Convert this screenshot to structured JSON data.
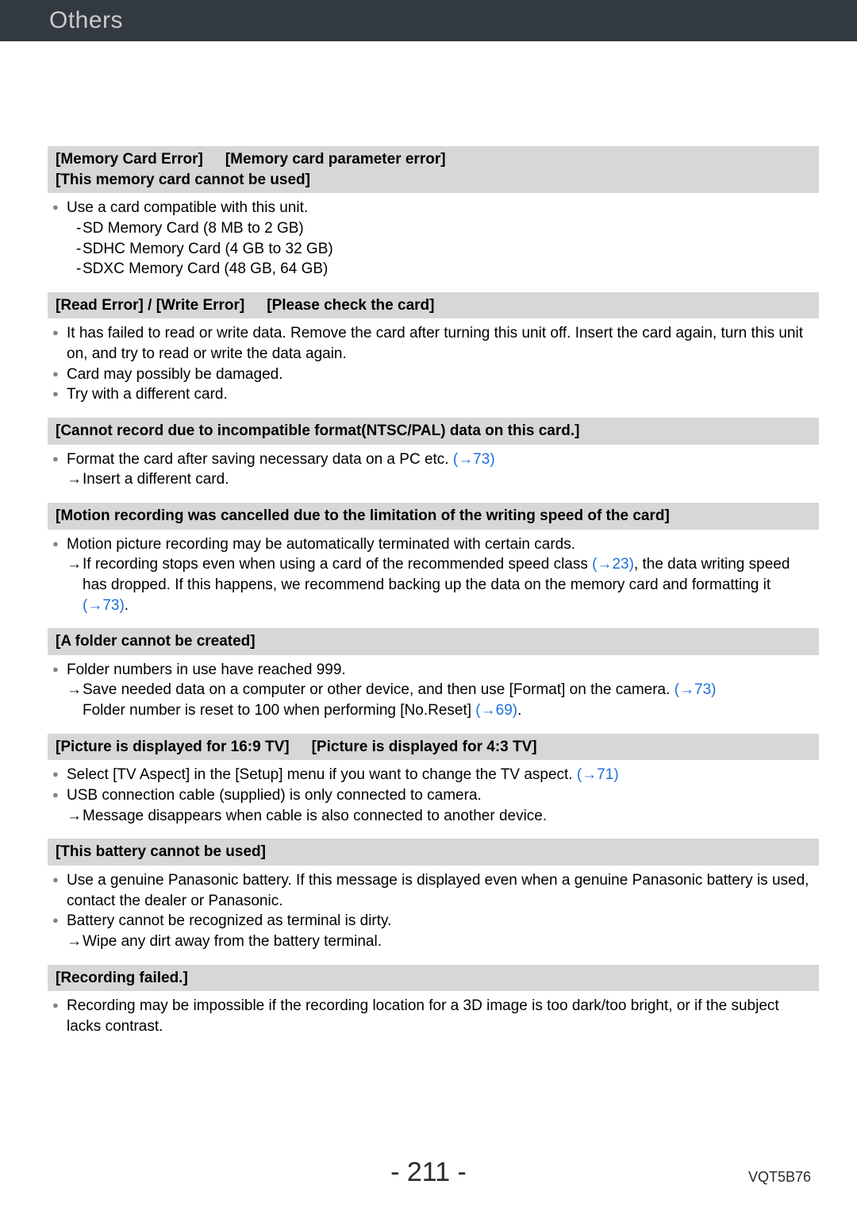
{
  "header": {
    "title": "Others"
  },
  "colors": {
    "header_bg": "#333a3f",
    "header_text": "#c8ccd0",
    "heading_bg": "#d7d7d7",
    "bullet_color": "#838383",
    "link_color": "#1f6fd8",
    "body_text": "#000000"
  },
  "sections": [
    {
      "heading_parts": [
        "[Memory Card Error]",
        "[Memory card parameter error]"
      ],
      "heading_line2": "[This memory card cannot be used]",
      "body": [
        {
          "type": "bullet",
          "text": "Use a card compatible with this unit."
        },
        {
          "type": "dash",
          "text": "SD Memory Card (8 MB to 2 GB)"
        },
        {
          "type": "dash",
          "text": "SDHC Memory Card (4 GB to 32 GB)"
        },
        {
          "type": "dash",
          "text": "SDXC Memory Card (48 GB, 64 GB)"
        }
      ]
    },
    {
      "heading_parts": [
        "[Read Error] / [Write Error]",
        "[Please check the card]"
      ],
      "body": [
        {
          "type": "bullet",
          "text": "It has failed to read or write data. Remove the card after turning this unit off. Insert the card again, turn this unit on, and try to read or write the data again."
        },
        {
          "type": "bullet",
          "text": "Card may possibly be damaged."
        },
        {
          "type": "bullet",
          "text": "Try with a different card."
        }
      ]
    },
    {
      "heading_parts": [
        "[Cannot record due to incompatible format(NTSC/PAL) data on this card.]"
      ],
      "body": [
        {
          "type": "bullet",
          "text_pre": "Format the card after saving necessary data on a PC etc. ",
          "link": "(→73)"
        },
        {
          "type": "arrow",
          "text": "Insert a different card."
        }
      ]
    },
    {
      "heading_parts": [
        "[Motion recording was cancelled due to the limitation of the writing speed of the card]"
      ],
      "body": [
        {
          "type": "bullet",
          "text": "Motion picture recording may be automatically terminated with certain cards."
        },
        {
          "type": "arrow",
          "text_pre": "If recording stops even when using a card of the recommended speed class ",
          "link": "(→23)",
          "text_post": ", the data writing speed has dropped. If this happens, we recommend backing up the data on the memory card and formatting it ",
          "link2": "(→73)",
          "text_end": "."
        }
      ]
    },
    {
      "heading_parts": [
        "[A folder cannot be created]"
      ],
      "body": [
        {
          "type": "bullet",
          "text": "Folder numbers in use have reached 999."
        },
        {
          "type": "arrow",
          "text_pre": "Save needed data on a computer or other device, and then use [Format] on the camera. ",
          "link": "(→73)"
        },
        {
          "type": "cont",
          "text_pre": "Folder number is reset to 100 when performing [No.Reset] ",
          "link": "(→69)",
          "text_post": "."
        }
      ]
    },
    {
      "heading_parts": [
        "[Picture is displayed for 16:9 TV]",
        "[Picture is displayed for 4:3 TV]"
      ],
      "body": [
        {
          "type": "bullet",
          "text_pre": "Select [TV Aspect] in the [Setup] menu if you want to change the TV aspect. ",
          "link": "(→71)"
        },
        {
          "type": "bullet",
          "text": "USB connection cable (supplied) is only connected to camera."
        },
        {
          "type": "arrow",
          "text": "Message disappears when cable is also connected to another device."
        }
      ]
    },
    {
      "heading_parts": [
        "[This battery cannot be used]"
      ],
      "body": [
        {
          "type": "bullet",
          "text": "Use a genuine Panasonic battery. If this message is displayed even when a genuine Panasonic battery is used, contact the dealer or Panasonic."
        },
        {
          "type": "bullet",
          "text": "Battery cannot be recognized as terminal is dirty."
        },
        {
          "type": "arrow",
          "text": "Wipe any dirt away from the battery terminal."
        }
      ]
    },
    {
      "heading_parts": [
        "[Recording failed.]"
      ],
      "body": [
        {
          "type": "bullet",
          "text": "Recording may be impossible if the recording location for a 3D image is too dark/too bright, or if the subject lacks contrast."
        }
      ]
    }
  ],
  "footer": {
    "page": "- 211 -",
    "code": "VQT5B76"
  }
}
